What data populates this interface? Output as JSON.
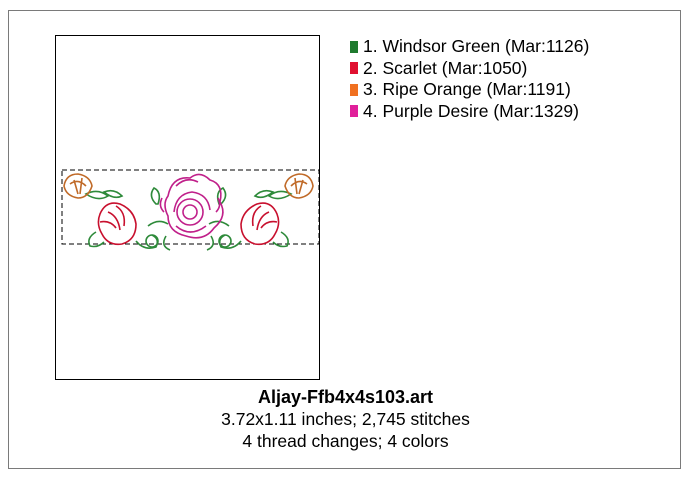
{
  "thread_list": [
    {
      "label": "1.  Windsor Green (Mar:1126)",
      "color": "#1e7a2e"
    },
    {
      "label": "2.  Scarlet (Mar:1050)",
      "color": "#e01030"
    },
    {
      "label": "3.  Ripe Orange (Mar:1191)",
      "color": "#f07020"
    },
    {
      "label": "4.  Purple Desire (Mar:1329)",
      "color": "#e0209a"
    }
  ],
  "design": {
    "file_name": "Aljay-Ffb4x4s103.art",
    "size_stitches": "3.72x1.11 inches; 2,745 stitches",
    "changes_colors": "4 thread changes; 4 colors"
  },
  "preview": {
    "icon": "floral-rose-border-embroidery",
    "stitch_colors": {
      "green": "#2e8a3a",
      "red": "#c8102e",
      "orange": "#c06a28",
      "purple": "#c0208a"
    }
  }
}
